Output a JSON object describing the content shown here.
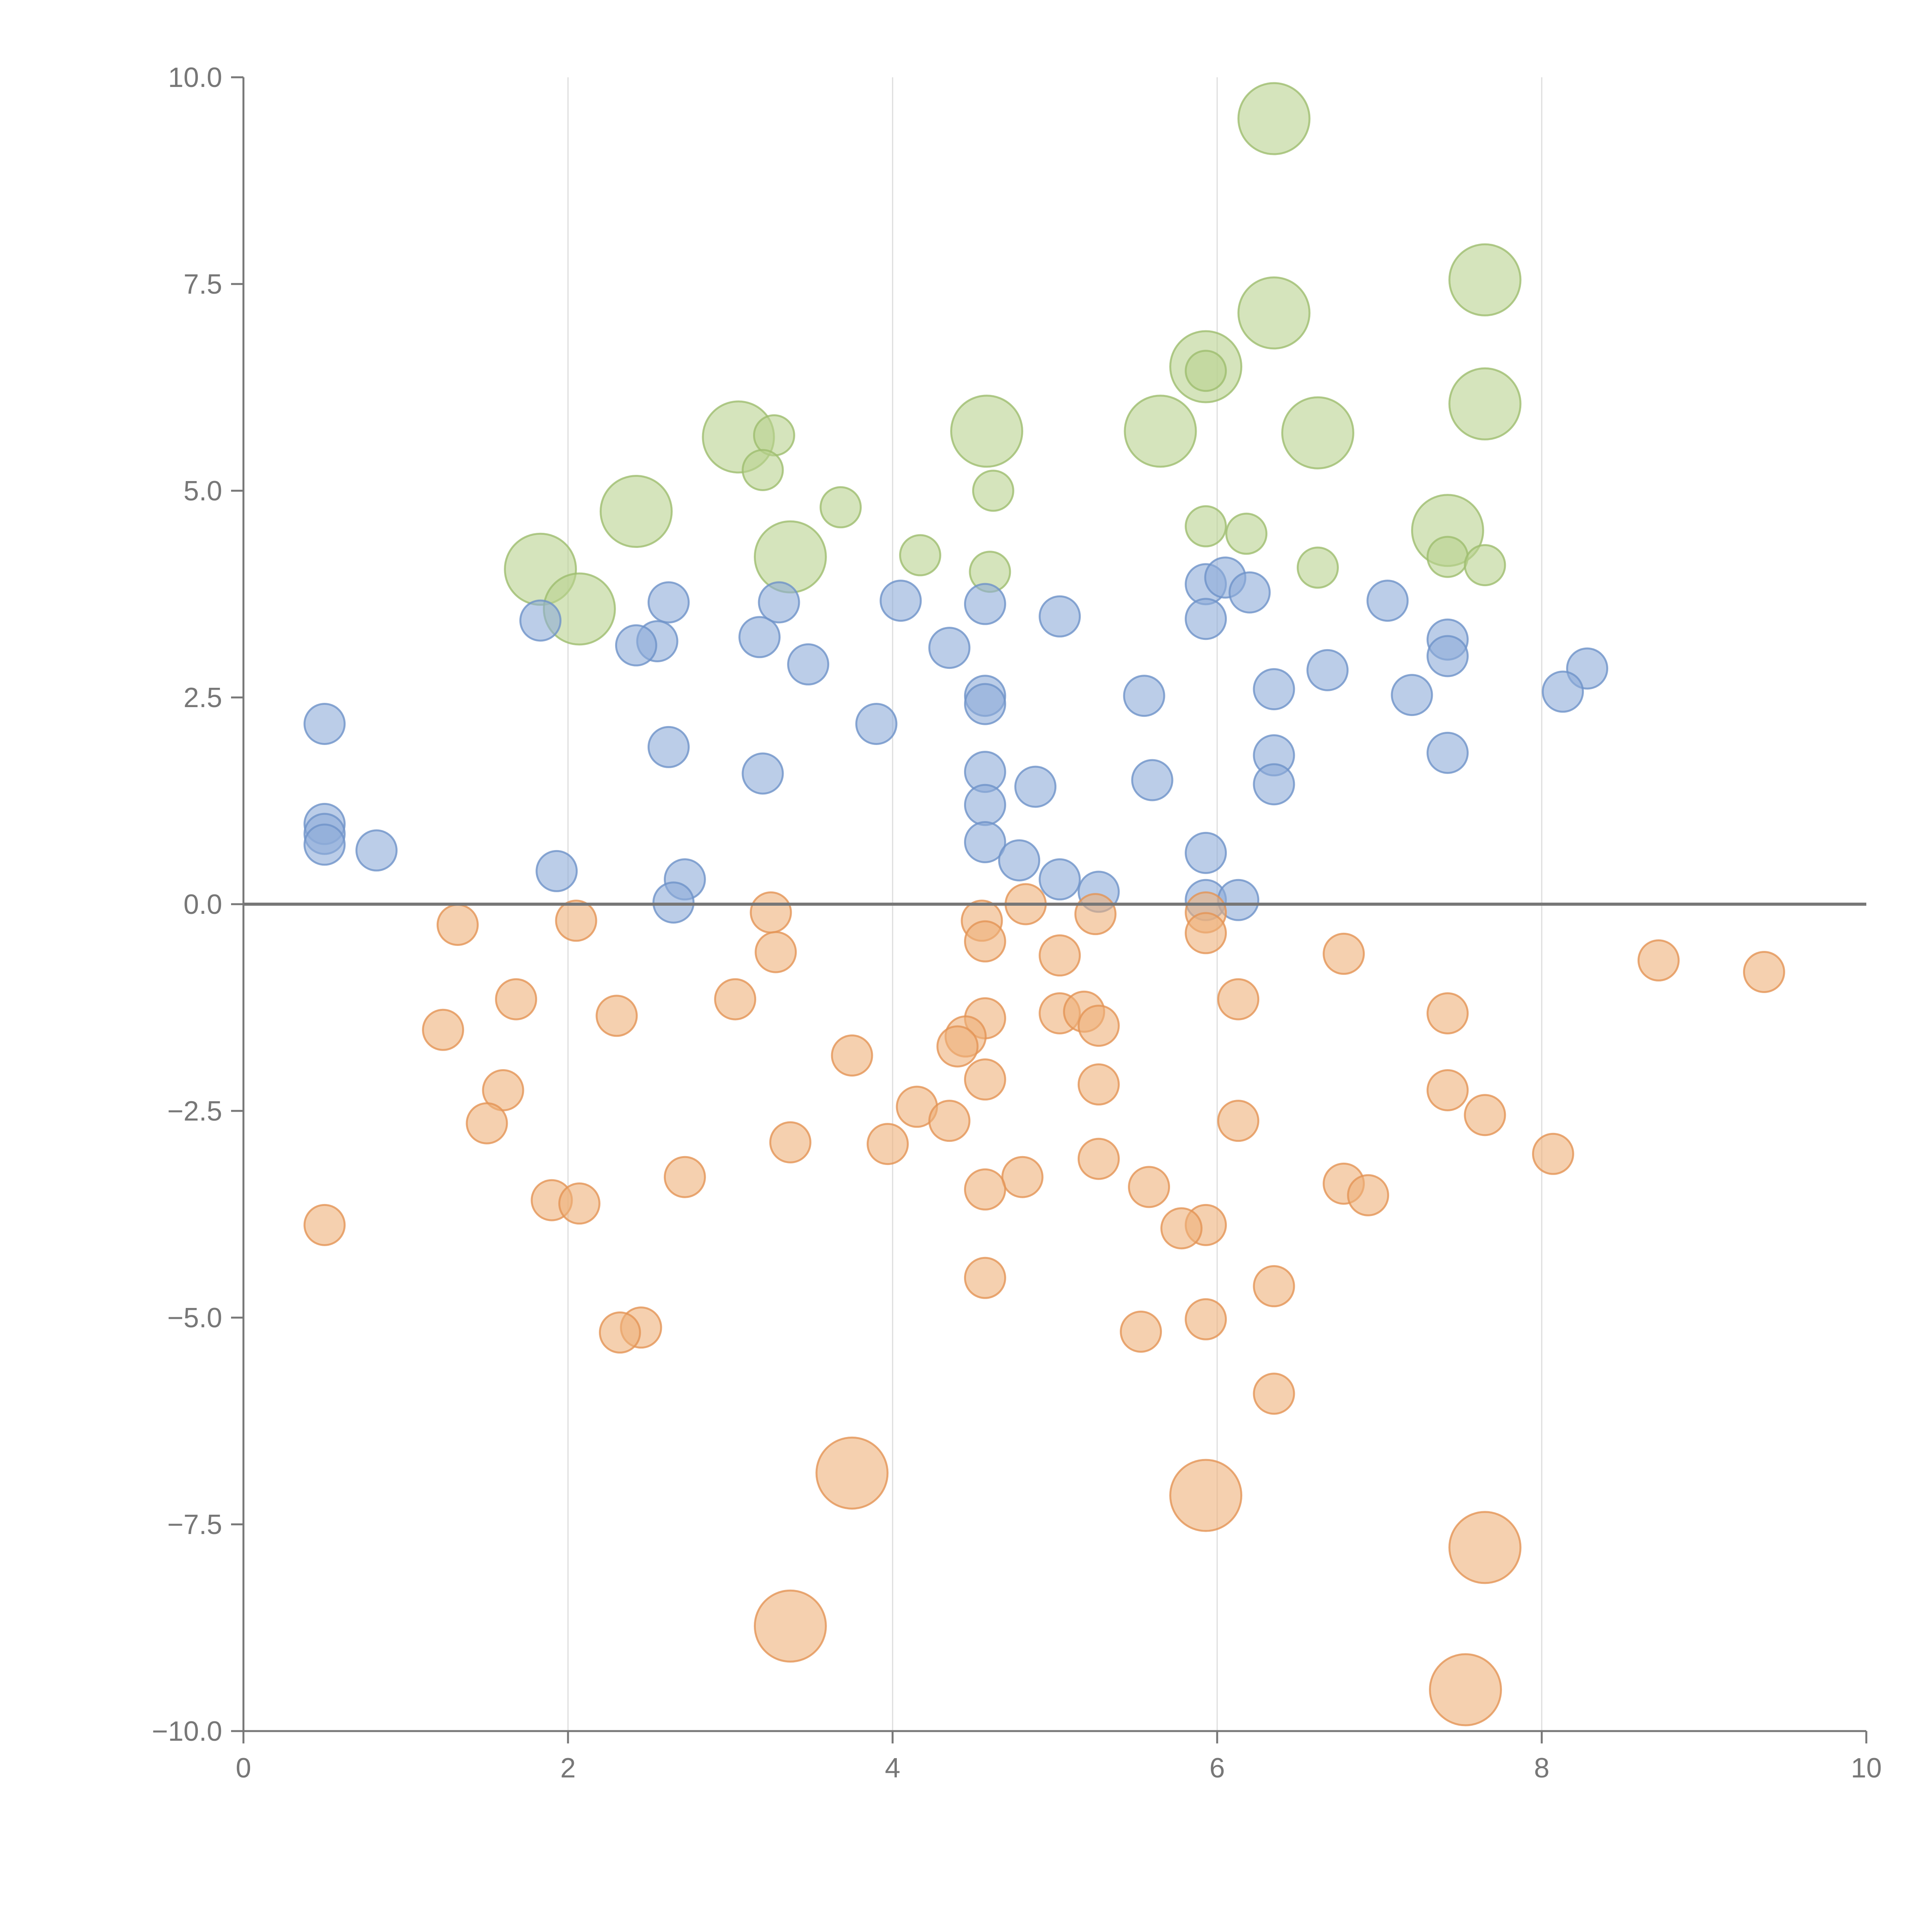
{
  "chart_data": {
    "type": "scatter",
    "title": "",
    "xlabel": "",
    "ylabel": "",
    "xlim": [
      0,
      10
    ],
    "ylim": [
      -10,
      10
    ],
    "x_ticks": [
      0,
      2,
      4,
      6,
      8,
      10
    ],
    "x_tick_labels": [
      "0",
      "2",
      "4",
      "6",
      "8",
      "10"
    ],
    "y_ticks": [
      10,
      7.5,
      5,
      2.5,
      0,
      -2.5,
      -5,
      -7.5,
      -10
    ],
    "y_tick_labels": [
      "10.0",
      "7.5",
      "5.0",
      "2.5",
      "0.0",
      "−2.5",
      "−5.0",
      "−7.5",
      "−10.0"
    ],
    "vertical_grid": true,
    "zero_line": true,
    "series": [
      {
        "name": "green",
        "fill": "#b9d28f",
        "stroke": "#9dbd6e",
        "points": [
          [
            6.35,
            9.5,
            2
          ],
          [
            7.65,
            7.55,
            2
          ],
          [
            6.35,
            7.15,
            2
          ],
          [
            5.93,
            6.5,
            2
          ],
          [
            5.93,
            6.45,
            1
          ],
          [
            7.65,
            6.05,
            2
          ],
          [
            3.05,
            5.65,
            2
          ],
          [
            3.27,
            5.67,
            1
          ],
          [
            4.58,
            5.72,
            2
          ],
          [
            5.65,
            5.72,
            2
          ],
          [
            6.62,
            5.7,
            2
          ],
          [
            3.2,
            5.25,
            1
          ],
          [
            2.42,
            4.75,
            2
          ],
          [
            3.68,
            4.8,
            1
          ],
          [
            4.62,
            5.0,
            1
          ],
          [
            7.42,
            4.52,
            2
          ],
          [
            5.93,
            4.57,
            1
          ],
          [
            6.18,
            4.48,
            1
          ],
          [
            1.83,
            4.05,
            2
          ],
          [
            3.37,
            4.2,
            2
          ],
          [
            4.17,
            4.22,
            1
          ],
          [
            7.42,
            4.2,
            1
          ],
          [
            7.65,
            4.1,
            1
          ],
          [
            6.62,
            4.07,
            1
          ],
          [
            4.6,
            4.02,
            1
          ],
          [
            2.07,
            3.57,
            2
          ]
        ]
      },
      {
        "name": "blue",
        "fill": "#8eacd8",
        "stroke": "#6e92c8",
        "points": [
          [
            5.93,
            3.87,
            1
          ],
          [
            6.05,
            3.95,
            1
          ],
          [
            6.2,
            3.77,
            1
          ],
          [
            7.05,
            3.67,
            1
          ],
          [
            4.05,
            3.67,
            1
          ],
          [
            4.57,
            3.63,
            1
          ],
          [
            2.62,
            3.65,
            1
          ],
          [
            3.3,
            3.65,
            1
          ],
          [
            5.03,
            3.48,
            1
          ],
          [
            5.93,
            3.45,
            1
          ],
          [
            1.83,
            3.43,
            1
          ],
          [
            7.42,
            3.2,
            1
          ],
          [
            3.18,
            3.23,
            1
          ],
          [
            2.55,
            3.18,
            1
          ],
          [
            2.42,
            3.13,
            1
          ],
          [
            4.35,
            3.1,
            1
          ],
          [
            7.42,
            3.0,
            1
          ],
          [
            3.48,
            2.9,
            1
          ],
          [
            8.28,
            2.85,
            1
          ],
          [
            6.68,
            2.83,
            1
          ],
          [
            6.35,
            2.6,
            1
          ],
          [
            4.57,
            2.52,
            1
          ],
          [
            5.55,
            2.52,
            1
          ],
          [
            7.2,
            2.53,
            1
          ],
          [
            8.13,
            2.57,
            1
          ],
          [
            4.57,
            2.42,
            1
          ],
          [
            0.5,
            2.18,
            1
          ],
          [
            3.9,
            2.18,
            1
          ],
          [
            2.62,
            1.9,
            1
          ],
          [
            7.42,
            1.83,
            1
          ],
          [
            6.35,
            1.8,
            1
          ],
          [
            3.2,
            1.58,
            1
          ],
          [
            4.57,
            1.6,
            1
          ],
          [
            5.6,
            1.5,
            1
          ],
          [
            6.35,
            1.45,
            1
          ],
          [
            4.88,
            1.42,
            1
          ],
          [
            4.57,
            1.2,
            1
          ],
          [
            0.5,
            0.97,
            1
          ],
          [
            0.5,
            0.85,
            1
          ],
          [
            0.5,
            0.72,
            1
          ],
          [
            4.57,
            0.75,
            1
          ],
          [
            0.82,
            0.65,
            1
          ],
          [
            5.93,
            0.62,
            1
          ],
          [
            4.78,
            0.53,
            1
          ],
          [
            1.93,
            0.4,
            1
          ],
          [
            2.72,
            0.3,
            1
          ],
          [
            5.03,
            0.3,
            1
          ],
          [
            5.27,
            0.15,
            1
          ],
          [
            2.65,
            0.02,
            1
          ],
          [
            5.93,
            0.05,
            1
          ],
          [
            6.13,
            0.05,
            1
          ]
        ]
      },
      {
        "name": "orange",
        "fill": "#eeb07a",
        "stroke": "#e39355",
        "points": [
          [
            4.82,
            0.0,
            1
          ],
          [
            3.25,
            -0.1,
            1
          ],
          [
            5.93,
            -0.1,
            1
          ],
          [
            5.25,
            -0.12,
            1
          ],
          [
            4.55,
            -0.2,
            1
          ],
          [
            2.05,
            -0.2,
            1
          ],
          [
            1.32,
            -0.25,
            1
          ],
          [
            5.93,
            -0.35,
            1
          ],
          [
            4.57,
            -0.45,
            1
          ],
          [
            3.28,
            -0.58,
            1
          ],
          [
            6.78,
            -0.6,
            1
          ],
          [
            5.03,
            -0.62,
            1
          ],
          [
            8.72,
            -0.68,
            1
          ],
          [
            9.37,
            -0.82,
            1
          ],
          [
            1.68,
            -1.15,
            1
          ],
          [
            3.03,
            -1.15,
            1
          ],
          [
            6.13,
            -1.15,
            1
          ],
          [
            7.42,
            -1.32,
            1
          ],
          [
            2.3,
            -1.35,
            1
          ],
          [
            5.03,
            -1.32,
            1
          ],
          [
            5.18,
            -1.3,
            1
          ],
          [
            4.57,
            -1.38,
            1
          ],
          [
            5.27,
            -1.47,
            1
          ],
          [
            1.23,
            -1.52,
            1
          ],
          [
            4.45,
            -1.6,
            1
          ],
          [
            4.4,
            -1.72,
            1
          ],
          [
            3.75,
            -1.83,
            1
          ],
          [
            4.57,
            -2.12,
            1
          ],
          [
            5.27,
            -2.18,
            1
          ],
          [
            1.6,
            -2.25,
            1
          ],
          [
            7.42,
            -2.25,
            1
          ],
          [
            4.15,
            -2.45,
            1
          ],
          [
            7.65,
            -2.55,
            1
          ],
          [
            4.35,
            -2.62,
            1
          ],
          [
            6.13,
            -2.62,
            1
          ],
          [
            1.5,
            -2.65,
            1
          ],
          [
            3.37,
            -2.88,
            1
          ],
          [
            3.97,
            -2.9,
            1
          ],
          [
            8.07,
            -3.02,
            1
          ],
          [
            5.27,
            -3.08,
            1
          ],
          [
            2.72,
            -3.3,
            1
          ],
          [
            4.8,
            -3.3,
            1
          ],
          [
            6.78,
            -3.38,
            1
          ],
          [
            5.58,
            -3.42,
            1
          ],
          [
            4.57,
            -3.45,
            1
          ],
          [
            6.93,
            -3.52,
            1
          ],
          [
            1.9,
            -3.58,
            1
          ],
          [
            2.07,
            -3.62,
            1
          ],
          [
            0.5,
            -3.88,
            1
          ],
          [
            5.93,
            -3.88,
            1
          ],
          [
            5.78,
            -3.92,
            1
          ],
          [
            4.57,
            -4.52,
            1
          ],
          [
            6.35,
            -4.62,
            1
          ],
          [
            5.93,
            -5.02,
            1
          ],
          [
            5.53,
            -5.17,
            1
          ],
          [
            2.45,
            -5.12,
            1
          ],
          [
            2.32,
            -5.18,
            1
          ],
          [
            6.35,
            -5.92,
            1
          ],
          [
            3.75,
            -6.88,
            2
          ],
          [
            5.93,
            -7.15,
            2
          ],
          [
            7.65,
            -7.78,
            2
          ],
          [
            3.37,
            -8.73,
            2
          ],
          [
            7.53,
            -9.5,
            2
          ]
        ]
      }
    ]
  }
}
